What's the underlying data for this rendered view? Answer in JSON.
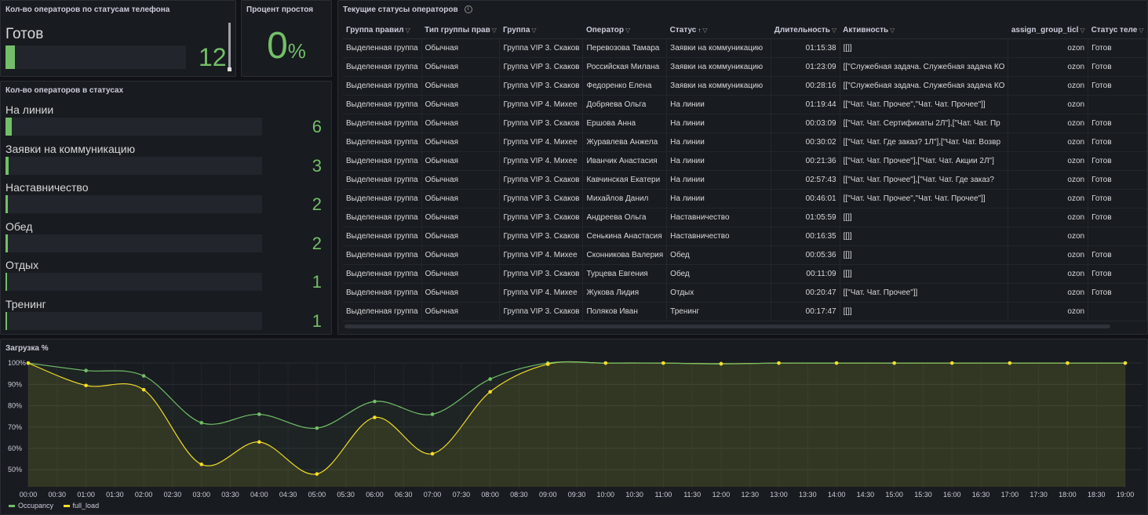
{
  "phone_panel": {
    "title": "Кол-во операторов по статусам телефона",
    "label": "Готов",
    "value": "12",
    "fill": 0.05
  },
  "idle_panel": {
    "title": "Процент простоя",
    "value": "0",
    "unit": "%"
  },
  "status_panel": {
    "title": "Кол-во операторов в статусах",
    "items": [
      {
        "label": "На линии",
        "value": "6",
        "fill": 0.025
      },
      {
        "label": "Заявки на коммуникацию",
        "value": "3",
        "fill": 0.012
      },
      {
        "label": "Наставничество",
        "value": "2",
        "fill": 0.008
      },
      {
        "label": "Обед",
        "value": "2",
        "fill": 0.008
      },
      {
        "label": "Отдых",
        "value": "1",
        "fill": 0.004
      },
      {
        "label": "Тренинг",
        "value": "1",
        "fill": 0.004
      }
    ]
  },
  "table_panel": {
    "title": "Текущие статусы операторов",
    "columns": [
      "Группа правил",
      "Тип группы прав",
      "Группа",
      "Оператор",
      "Статус",
      "Длительность",
      "Активность",
      "assign_group_ticl",
      "Статус теле"
    ],
    "sort_icon": "↑",
    "rows": [
      [
        "Выделенная группа",
        "Обычная",
        "Группа VIP 3. Скаков",
        "Перевозова Тамара",
        "Заявки на коммуникацию",
        "01:15:38",
        "[[]]",
        "ozon",
        "Готов"
      ],
      [
        "Выделенная группа",
        "Обычная",
        "Группа VIP 3. Скаков",
        "Российская Милана",
        "Заявки на коммуникацию",
        "01:23:09",
        "[[\"Служебная задача. Служебная задача КО",
        "ozon",
        "Готов"
      ],
      [
        "Выделенная группа",
        "Обычная",
        "Группа VIP 3. Скаков",
        "Федоренко Елена",
        "Заявки на коммуникацию",
        "00:28:16",
        "[[\"Служебная задача. Служебная задача КО",
        "ozon",
        "Готов"
      ],
      [
        "Выделенная группа",
        "Обычная",
        "Группа VIP 4. Михее",
        "Добряева Ольга",
        "На линии",
        "01:19:44",
        "[[\"Чат. Чат. Прочее\",\"Чат. Чат. Прочее\"]]",
        "ozon",
        ""
      ],
      [
        "Выделенная группа",
        "Обычная",
        "Группа VIP 3. Скаков",
        "Ершова Анна",
        "На линии",
        "00:03:09",
        "[[\"Чат. Чат. Сертификаты 2Л\"],[\"Чат. Чат. Пр",
        "ozon",
        "Готов"
      ],
      [
        "Выделенная группа",
        "Обычная",
        "Группа VIP 4. Михее",
        "Журавлева Анжела",
        "На линии",
        "00:30:02",
        "[[\"Чат. Чат. Где заказ? 1Л\"],[\"Чат. Чат. Возвр",
        "ozon",
        "Готов"
      ],
      [
        "Выделенная группа",
        "Обычная",
        "Группа VIP 4. Михее",
        "Иванчик Анастасия",
        "На линии",
        "00:21:36",
        "[[\"Чат. Чат. Прочее\"],[\"Чат. Чат. Акции 2Л\"]",
        "ozon",
        "Готов"
      ],
      [
        "Выделенная группа",
        "Обычная",
        "Группа VIP 3. Скаков",
        "Кавчинская Екатери",
        "На линии",
        "02:57:43",
        "[[\"Чат. Чат. Прочее\"],[\"Чат. Чат. Где заказ?",
        "ozon",
        "Готов"
      ],
      [
        "Выделенная группа",
        "Обычная",
        "Группа VIP 3. Скаков",
        "Михайлов Данил",
        "На линии",
        "00:46:01",
        "[[\"Чат. Чат. Прочее\",\"Чат. Чат. Прочее\"]]",
        "ozon",
        "Готов"
      ],
      [
        "Выделенная группа",
        "Обычная",
        "Группа VIP 3. Скаков",
        "Андреева Ольга",
        "Наставничество",
        "01:05:59",
        "[[]]",
        "ozon",
        "Готов"
      ],
      [
        "Выделенная группа",
        "Обычная",
        "Группа VIP 3. Скаков",
        "Сенькина Анастасия",
        "Наставничество",
        "00:16:35",
        "[[]]",
        "ozon",
        ""
      ],
      [
        "Выделенная группа",
        "Обычная",
        "Группа VIP 4. Михее",
        "Сконникова Валерия",
        "Обед",
        "00:05:36",
        "[[]]",
        "ozon",
        "Готов"
      ],
      [
        "Выделенная группа",
        "Обычная",
        "Группа VIP 3. Скаков",
        "Турцева Евгения",
        "Обед",
        "00:11:09",
        "[[]]",
        "ozon",
        "Готов"
      ],
      [
        "Выделенная группа",
        "Обычная",
        "Группа VIP 4. Михее",
        "Жукова Лидия",
        "Отдых",
        "00:20:47",
        "[[\"Чат. Чат. Прочее\"]]",
        "ozon",
        "Готов"
      ],
      [
        "Выделенная группа",
        "Обычная",
        "Группа VIP 3. Скаков",
        "Поляков Иван",
        "Тренинг",
        "00:17:47",
        "[[]]",
        "ozon",
        ""
      ]
    ]
  },
  "load_panel": {
    "title": "Загрузка %"
  },
  "chart_data": {
    "type": "line",
    "title": "Загрузка %",
    "x": [
      "00:00",
      "01:00",
      "02:00",
      "03:00",
      "04:00",
      "05:00",
      "06:00",
      "07:00",
      "08:00",
      "09:00",
      "10:00",
      "11:00",
      "12:00",
      "13:00",
      "14:00",
      "15:00",
      "16:00",
      "17:00",
      "18:00",
      "19:00"
    ],
    "x_ticks": [
      "00:00",
      "00:30",
      "01:00",
      "01:30",
      "02:00",
      "02:30",
      "03:00",
      "03:30",
      "04:00",
      "04:30",
      "05:00",
      "05:30",
      "06:00",
      "06:30",
      "07:00",
      "07:30",
      "08:00",
      "08:30",
      "09:00",
      "09:30",
      "10:00",
      "10:30",
      "11:00",
      "11:30",
      "12:00",
      "12:30",
      "13:00",
      "13:30",
      "14:00",
      "14:30",
      "15:00",
      "15:30",
      "16:00",
      "16:30",
      "17:00",
      "17:30",
      "18:00",
      "18:30",
      "19:00"
    ],
    "y_ticks": [
      "50%",
      "60%",
      "70%",
      "80%",
      "90%",
      "100%"
    ],
    "ylim": [
      42,
      103
    ],
    "series": [
      {
        "name": "Occupancy",
        "color": "#73bf69",
        "values": [
          100,
          96.5,
          94,
          72,
          76,
          69.5,
          82,
          76,
          92.5,
          100,
          100,
          100,
          99.6,
          100,
          100,
          100,
          100,
          100,
          100,
          100
        ]
      },
      {
        "name": "full_load",
        "color": "#fade2a",
        "values": [
          100,
          89.5,
          87.5,
          52.5,
          63,
          48,
          74.5,
          57.5,
          86.5,
          99.5,
          100,
          100,
          99.7,
          100,
          100,
          100,
          100,
          100,
          100,
          100
        ]
      }
    ],
    "legend_position": "bottom-left",
    "grid": true
  }
}
